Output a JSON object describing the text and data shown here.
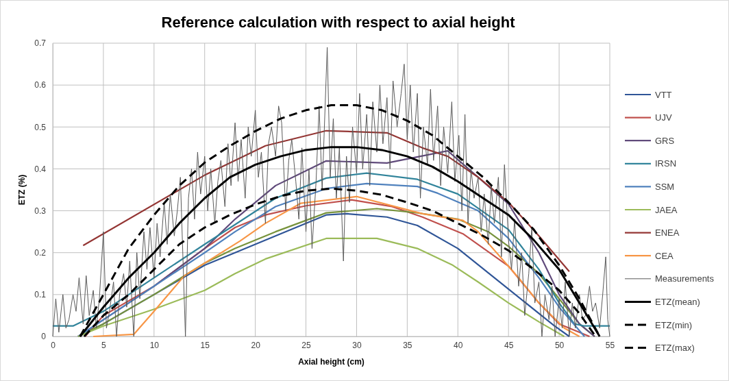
{
  "chart_data": {
    "type": "line",
    "title": "Reference calculation with respect to axial height",
    "xlabel": "Axial height (cm)",
    "ylabel": "ETZ (%)",
    "xlim": [
      0,
      55
    ],
    "xticks": [
      0,
      5,
      10,
      15,
      20,
      25,
      30,
      35,
      40,
      45,
      50,
      55
    ],
    "ylim": [
      0,
      0.7
    ],
    "yticks": [
      0,
      0.1,
      0.2,
      0.3,
      0.4,
      0.5,
      0.6,
      0.7
    ],
    "grid": true,
    "legend": "right",
    "marker": "none",
    "series": [
      {
        "name": "VTT",
        "color": "#2f5597",
        "x": [
          2.5,
          5,
          10,
          15,
          18,
          22,
          27,
          29,
          33,
          36,
          40,
          45,
          49.5,
          51
        ],
        "values": [
          0,
          0.03,
          0.1,
          0.17,
          0.2,
          0.24,
          0.29,
          0.293,
          0.285,
          0.265,
          0.21,
          0.113,
          0.026,
          0
        ]
      },
      {
        "name": "UJV",
        "color": "#c0504d",
        "x": [
          3.2,
          5,
          10,
          15,
          18,
          21,
          25,
          29.5,
          33.5,
          36.5,
          40.5,
          45,
          48,
          50,
          53
        ],
        "values": [
          0,
          0.05,
          0.12,
          0.21,
          0.26,
          0.29,
          0.312,
          0.326,
          0.31,
          0.285,
          0.245,
          0.168,
          0.08,
          0.03,
          0
        ]
      },
      {
        "color": "#77933c",
        "x": [
          2.5,
          5,
          10,
          15,
          18,
          22,
          27,
          32,
          36,
          40,
          43,
          45,
          48,
          50,
          52,
          53.5
        ],
        "values": [
          0,
          0.03,
          0.1,
          0.175,
          0.21,
          0.25,
          0.295,
          0.305,
          0.295,
          0.28,
          0.25,
          0.215,
          0.15,
          0.09,
          0.03,
          0
        ]
      },
      {
        "name": "GRS",
        "color": "#604a7b",
        "x": [
          2.5,
          5,
          10,
          15,
          18,
          22,
          27,
          33,
          39,
          42,
          45,
          48,
          50,
          52,
          53.5
        ],
        "values": [
          0,
          0.04,
          0.12,
          0.21,
          0.28,
          0.36,
          0.419,
          0.414,
          0.443,
          0.38,
          0.316,
          0.2,
          0.1,
          0.03,
          0
        ]
      },
      {
        "name": "IRSN",
        "color": "#31849b",
        "x": [
          0,
          2,
          5,
          10,
          15,
          18,
          22,
          27,
          31,
          36,
          40,
          45,
          48,
          50,
          51.5,
          52.5,
          55
        ],
        "values": [
          0.025,
          0.025,
          0.06,
          0.14,
          0.22,
          0.267,
          0.33,
          0.378,
          0.39,
          0.375,
          0.34,
          0.255,
          0.16,
          0.08,
          0.03,
          0.025,
          0.025
        ]
      },
      {
        "name": "SSM",
        "color": "#4f81bd",
        "x": [
          2.5,
          5,
          10,
          15,
          18,
          22,
          27,
          31,
          36,
          38,
          42,
          45,
          48,
          50,
          52.5
        ],
        "values": [
          0,
          0.04,
          0.12,
          0.2,
          0.25,
          0.31,
          0.353,
          0.365,
          0.358,
          0.342,
          0.3,
          0.234,
          0.14,
          0.07,
          0
        ]
      },
      {
        "name": "JAEA",
        "color": "#9bbb59",
        "x": [
          2.5,
          5,
          10,
          15,
          18,
          21,
          27,
          32,
          36,
          39.5,
          42,
          45,
          48,
          50.5
        ],
        "values": [
          0,
          0.025,
          0.065,
          0.11,
          0.15,
          0.185,
          0.234,
          0.234,
          0.21,
          0.17,
          0.13,
          0.08,
          0.035,
          0
        ]
      },
      {
        "name": "ENEA",
        "color": "#943634",
        "x": [
          3,
          15,
          21,
          27,
          33,
          36.5,
          39,
          42,
          45,
          48,
          51
        ],
        "values": [
          0.217,
          0.385,
          0.455,
          0.491,
          0.486,
          0.45,
          0.43,
          0.38,
          0.32,
          0.24,
          0.155
        ]
      },
      {
        "name": "CEA",
        "color": "#f79646",
        "x": [
          4,
          8,
          10,
          13,
          18.5,
          21,
          24.5,
          30,
          36.5,
          40.5,
          42,
          46,
          48,
          50.5,
          52
        ],
        "values": [
          0,
          0.005,
          0.06,
          0.145,
          0.228,
          0.27,
          0.318,
          0.334,
          0.293,
          0.277,
          0.25,
          0.14,
          0.08,
          0.02,
          0
        ]
      },
      {
        "name": "Measurements",
        "color": "#595959",
        "x": [
          0,
          0.3,
          0.6,
          1,
          1.3,
          1.6,
          2,
          2.3,
          2.6,
          3,
          3.3,
          3.6,
          4,
          4.3,
          4.6,
          5,
          5.3,
          5.6,
          6,
          6.3,
          6.6,
          7,
          7.3,
          7.6,
          8,
          8.3,
          8.6,
          9,
          9.3,
          9.6,
          10,
          10.3,
          10.6,
          11,
          11.3,
          11.6,
          12,
          12.3,
          12.6,
          13.1,
          13.4,
          13.7,
          14,
          14.3,
          14.6,
          15,
          15.3,
          15.6,
          16,
          16.3,
          16.6,
          17,
          17.3,
          17.6,
          18,
          18.3,
          18.6,
          19,
          19.3,
          19.6,
          20,
          20.3,
          20.6,
          21,
          21.3,
          21.6,
          22,
          22.3,
          22.6,
          23,
          23.3,
          23.6,
          24,
          24.3,
          24.6,
          25,
          25.3,
          25.6,
          26,
          26.3,
          26.6,
          27.1,
          27.4,
          27.7,
          28,
          28.3,
          28.7,
          29,
          29.3,
          29.6,
          30,
          30.3,
          30.6,
          31,
          31.3,
          31.6,
          32,
          32.3,
          32.6,
          33,
          33.3,
          33.6,
          34,
          34.4,
          34.7,
          35,
          35.3,
          35.6,
          36,
          36.3,
          36.6,
          37,
          37.3,
          37.6,
          38,
          38.3,
          38.6,
          39,
          39.4,
          39.7,
          40.1,
          40.4,
          40.7,
          41,
          41.3,
          41.6,
          42,
          42.3,
          42.6,
          43,
          43.3,
          43.6,
          44,
          44.3,
          44.6,
          45,
          45.3,
          45.6,
          46,
          46.3,
          46.6,
          47,
          47.3,
          47.6,
          48,
          48.3,
          48.6,
          49,
          49.3,
          49.6,
          50,
          50.3,
          50.6,
          51,
          51.3,
          51.6,
          52,
          52.3,
          52.6,
          53,
          53.3,
          53.6,
          54,
          54.3,
          54.6,
          54.8,
          55
        ],
        "values": [
          0,
          0.09,
          0.01,
          0.1,
          0.02,
          0.04,
          0.1,
          0.06,
          0.14,
          0.03,
          0.145,
          0.05,
          0.11,
          0.02,
          0.09,
          0.25,
          0.02,
          0.06,
          0.13,
          0,
          0.1,
          0.15,
          0.07,
          0.18,
          0,
          0.2,
          0.09,
          0.25,
          0.16,
          0.26,
          0.14,
          0.27,
          0.19,
          0.32,
          0.22,
          0.34,
          0.24,
          0.3,
          0.38,
          0,
          0.33,
          0.4,
          0.28,
          0.44,
          0.34,
          0.43,
          0.3,
          0.4,
          0.27,
          0.37,
          0.42,
          0.31,
          0.46,
          0.36,
          0.51,
          0.37,
          0.47,
          0.33,
          0.5,
          0.43,
          0.54,
          0.38,
          0.44,
          0.27,
          0.46,
          0.5,
          0.43,
          0.55,
          0.51,
          0.3,
          0.42,
          0.47,
          0.37,
          0.28,
          0.45,
          0.25,
          0.4,
          0.21,
          0.37,
          0.55,
          0.35,
          0.69,
          0.38,
          0.52,
          0.33,
          0.45,
          0.18,
          0.43,
          0.32,
          0.5,
          0.39,
          0.58,
          0.4,
          0.53,
          0.36,
          0.56,
          0.44,
          0.6,
          0.46,
          0.57,
          0.4,
          0.61,
          0.5,
          0.58,
          0.65,
          0.47,
          0.6,
          0.44,
          0.58,
          0.33,
          0.5,
          0.41,
          0.59,
          0.42,
          0.55,
          0.36,
          0.5,
          0.39,
          0.56,
          0.37,
          0.48,
          0.3,
          0.53,
          0.27,
          0.4,
          0.33,
          0.38,
          0.25,
          0.34,
          0.22,
          0.36,
          0.27,
          0.38,
          0.19,
          0.41,
          0.23,
          0.16,
          0.28,
          0.12,
          0.2,
          0.05,
          0.15,
          0.26,
          0.08,
          0.13,
          0,
          0.1,
          0.04,
          0.12,
          0,
          0.09,
          0.02,
          0.13,
          0,
          0.08,
          0.02,
          0.1,
          0.04,
          0.05,
          0.12,
          0.06,
          0.08,
          0.02,
          0.1,
          0.19,
          0.04,
          0
        ]
      },
      {
        "name": "ETZ(mean)",
        "color": "#000000",
        "line_style": "solid",
        "x": [
          2.7,
          5,
          7.5,
          10,
          12.5,
          15,
          17.5,
          20,
          22.5,
          25,
          27.5,
          30,
          32.5,
          35,
          37.5,
          40,
          42.5,
          45,
          47.5,
          50,
          52,
          54
        ],
        "values": [
          0,
          0.07,
          0.14,
          0.2,
          0.27,
          0.33,
          0.38,
          0.41,
          0.43,
          0.445,
          0.452,
          0.452,
          0.445,
          0.43,
          0.405,
          0.37,
          0.33,
          0.29,
          0.23,
          0.16,
          0.08,
          0
        ]
      },
      {
        "name": "ETZ(min)",
        "color": "#000000",
        "line_style": "dashed",
        "x": [
          3.1,
          5,
          7.5,
          10,
          12.5,
          15,
          17.5,
          20,
          22.5,
          25,
          27.5,
          30,
          32.5,
          35,
          37.5,
          40,
          42.5,
          45,
          47.5,
          50,
          52,
          53.6
        ],
        "values": [
          0,
          0.05,
          0.1,
          0.16,
          0.22,
          0.26,
          0.29,
          0.315,
          0.335,
          0.348,
          0.353,
          0.348,
          0.338,
          0.32,
          0.3,
          0.27,
          0.24,
          0.205,
          0.16,
          0.11,
          0.055,
          0
        ]
      },
      {
        "name": "ETZ(max)",
        "color": "#000000",
        "line_style": "dashed",
        "x": [
          2.7,
          5,
          7.5,
          10,
          12.5,
          15,
          17.5,
          20,
          22.5,
          25,
          27.5,
          30,
          32.5,
          35,
          37.5,
          40,
          42.5,
          45,
          47.5,
          50,
          52,
          54
        ],
        "values": [
          0,
          0.1,
          0.21,
          0.29,
          0.36,
          0.415,
          0.455,
          0.49,
          0.52,
          0.54,
          0.552,
          0.552,
          0.54,
          0.515,
          0.48,
          0.43,
          0.38,
          0.32,
          0.255,
          0.17,
          0.09,
          0
        ]
      }
    ]
  }
}
